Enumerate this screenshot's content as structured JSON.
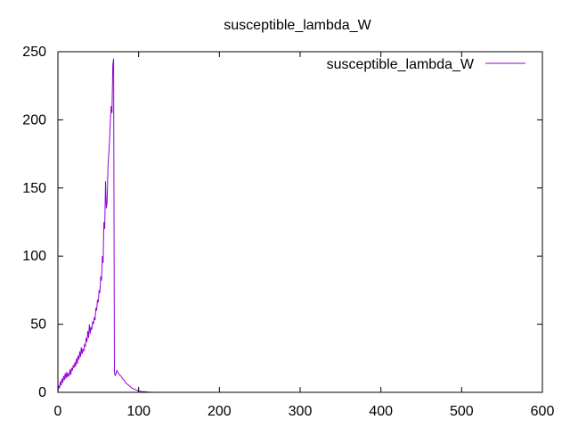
{
  "chart_data": {
    "type": "line",
    "title": "susceptible_lambda_W",
    "xlabel": "",
    "ylabel": "",
    "xlim": [
      0,
      600
    ],
    "ylim": [
      0,
      250
    ],
    "x_ticks": [
      0,
      100,
      200,
      300,
      400,
      500,
      600
    ],
    "y_ticks": [
      0,
      50,
      100,
      150,
      200,
      250
    ],
    "grid": false,
    "legend_position": "top-right",
    "series": [
      {
        "name": "susceptible_lambda_W",
        "color": "#9400d3",
        "x": [
          0,
          1,
          2,
          3,
          4,
          5,
          6,
          7,
          8,
          9,
          10,
          11,
          12,
          13,
          14,
          15,
          16,
          17,
          18,
          19,
          20,
          21,
          22,
          23,
          24,
          25,
          26,
          27,
          28,
          29,
          30,
          31,
          32,
          33,
          34,
          35,
          36,
          37,
          38,
          39,
          40,
          41,
          42,
          43,
          44,
          45,
          46,
          47,
          48,
          49,
          50,
          51,
          52,
          53,
          54,
          55,
          56,
          57,
          58,
          59,
          60,
          61,
          62,
          63,
          64,
          65,
          66,
          67,
          68,
          69,
          70,
          71,
          72,
          73,
          74,
          75,
          76,
          78,
          80,
          82,
          84,
          86,
          88,
          90,
          92,
          94,
          96,
          98,
          100,
          102,
          104,
          106,
          108,
          110,
          112,
          114,
          116,
          118,
          120
        ],
        "y": [
          0,
          5,
          3,
          8,
          5,
          10,
          7,
          12,
          9,
          14,
          10,
          15,
          11,
          14,
          12,
          17,
          13,
          18,
          16,
          20,
          18,
          22,
          19,
          25,
          21,
          27,
          24,
          30,
          26,
          33,
          28,
          32,
          30,
          35,
          34,
          40,
          37,
          45,
          40,
          50,
          43,
          48,
          46,
          52,
          50,
          55,
          53,
          62,
          60,
          68,
          66,
          75,
          73,
          85,
          82,
          100,
          95,
          125,
          120,
          155,
          135,
          140,
          165,
          175,
          185,
          200,
          210,
          205,
          240,
          245,
          15,
          12,
          14,
          16,
          15,
          14,
          13,
          12,
          10,
          9,
          7,
          6,
          5,
          4,
          3,
          2.5,
          2,
          1.5,
          1,
          0.8,
          0.6,
          0.5,
          0.4,
          0.3,
          0.2,
          0.1,
          0.05,
          0.02,
          0
        ]
      }
    ]
  }
}
